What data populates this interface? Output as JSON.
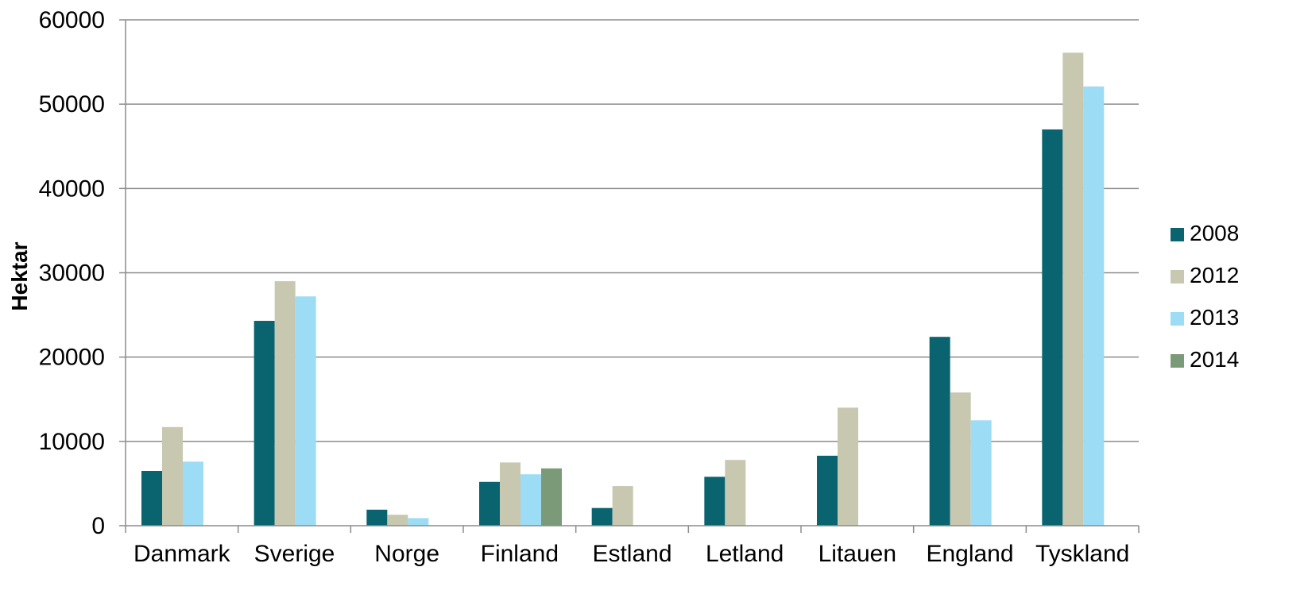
{
  "chart_data": {
    "type": "bar",
    "title": "",
    "xlabel": "",
    "ylabel": "Hektar",
    "ylim": [
      0,
      60000
    ],
    "yticks": [
      0,
      10000,
      20000,
      30000,
      40000,
      50000,
      60000
    ],
    "grid": true,
    "legend_position": "right",
    "categories": [
      "Danmark",
      "Sverige",
      "Norge",
      "Finland",
      "Estland",
      "Letland",
      "Litauen",
      "England",
      "Tyskland"
    ],
    "series": [
      {
        "name": "2008",
        "color": "#0a6470",
        "values": [
          6500,
          24300,
          1900,
          5200,
          2100,
          5800,
          8300,
          22400,
          47000
        ]
      },
      {
        "name": "2012",
        "color": "#c8c7b0",
        "values": [
          11700,
          29000,
          1300,
          7500,
          4700,
          7800,
          14000,
          15800,
          56100
        ]
      },
      {
        "name": "2013",
        "color": "#9ddcf5",
        "values": [
          7600,
          27200,
          900,
          6100,
          null,
          null,
          null,
          12500,
          52100
        ]
      },
      {
        "name": "2014",
        "color": "#7b9a78",
        "values": [
          null,
          null,
          null,
          6800,
          null,
          null,
          null,
          null,
          null
        ]
      }
    ]
  }
}
